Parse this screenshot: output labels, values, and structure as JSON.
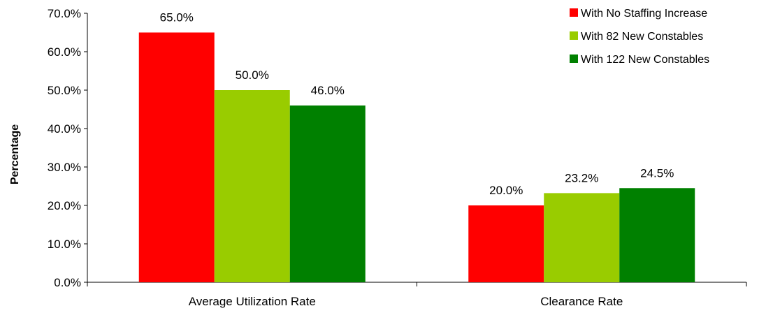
{
  "chart_data": {
    "type": "bar",
    "title": "",
    "xlabel": "",
    "ylabel": "Percentage",
    "ylim": [
      0,
      70
    ],
    "yticks": [
      "0.0%",
      "10.0%",
      "20.0%",
      "30.0%",
      "40.0%",
      "50.0%",
      "60.0%",
      "70.0%"
    ],
    "categories": [
      "Average Utilization Rate",
      "Clearance Rate"
    ],
    "series": [
      {
        "name": "With No Staffing Increase",
        "color": "#FF0000",
        "values": [
          65.0,
          20.0
        ],
        "labels": [
          "65.0%",
          "20.0%"
        ]
      },
      {
        "name": "With 82 New Constables",
        "color": "#99CC00",
        "values": [
          50.0,
          23.2
        ],
        "labels": [
          "50.0%",
          "23.2%"
        ]
      },
      {
        "name": "With 122 New Constables",
        "color": "#008000",
        "values": [
          46.0,
          24.5
        ],
        "labels": [
          "46.0%",
          "24.5%"
        ]
      }
    ],
    "legend_position": "top-right",
    "grid": false
  }
}
